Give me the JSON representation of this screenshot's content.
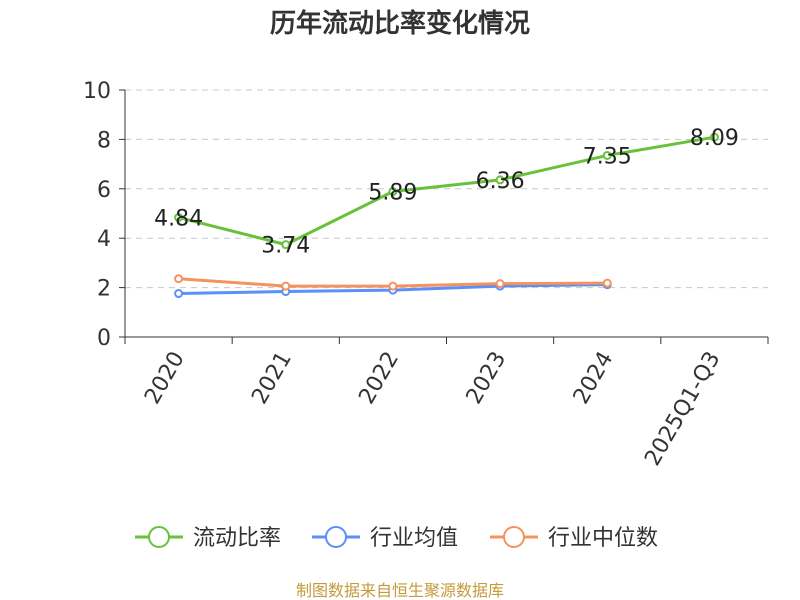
{
  "chart_data": {
    "type": "line",
    "title": "历年流动比率变化情况",
    "categories": [
      "2020",
      "2021",
      "2022",
      "2023",
      "2024",
      "2025Q1-Q3"
    ],
    "ylim": [
      0,
      10
    ],
    "yticks": [
      "0",
      "2",
      "4",
      "6",
      "8",
      "10"
    ],
    "grid": true,
    "legend_position": "bottom",
    "series": [
      {
        "name": "流动比率",
        "color": "#67c23a",
        "values": [
          4.84,
          3.74,
          5.89,
          6.36,
          7.35,
          8.09
        ],
        "labels": [
          "4.84",
          "3.74",
          "5.89",
          "6.36",
          "7.35",
          "8.09"
        ]
      },
      {
        "name": "行业均值",
        "color": "#5b8ff9",
        "values": [
          1.76,
          1.84,
          1.9,
          2.06,
          2.12,
          null
        ]
      },
      {
        "name": "行业中位数",
        "color": "#f4935d",
        "values": [
          2.36,
          2.06,
          2.06,
          2.16,
          2.18,
          null
        ]
      }
    ]
  },
  "source": "制图数据来自恒生聚源数据库"
}
